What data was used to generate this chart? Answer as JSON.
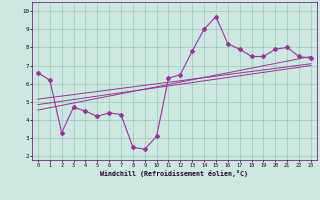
{
  "xlabel": "Windchill (Refroidissement éolien,°C)",
  "xlim": [
    -0.5,
    23.5
  ],
  "ylim": [
    1.8,
    10.5
  ],
  "yticks": [
    2,
    3,
    4,
    5,
    6,
    7,
    8,
    9,
    10
  ],
  "xticks": [
    0,
    1,
    2,
    3,
    4,
    5,
    6,
    7,
    8,
    9,
    10,
    11,
    12,
    13,
    14,
    15,
    16,
    17,
    18,
    19,
    20,
    21,
    22,
    23
  ],
  "bg_color": "#cce8e0",
  "line_color": "#993399",
  "grid_color": "#99ccbb",
  "main_x": [
    0,
    1,
    2,
    3,
    4,
    5,
    6,
    7,
    8,
    9,
    10,
    11,
    12,
    13,
    14,
    15,
    16,
    17,
    18,
    19,
    20,
    21,
    22,
    23
  ],
  "main_y": [
    6.6,
    6.2,
    3.3,
    4.7,
    4.5,
    4.2,
    4.4,
    4.3,
    2.5,
    2.4,
    3.1,
    6.3,
    6.5,
    7.8,
    9.0,
    9.7,
    8.2,
    7.9,
    7.5,
    7.5,
    7.9,
    8.0,
    7.5,
    7.4
  ],
  "fit1_x": [
    0,
    23
  ],
  "fit1_y": [
    5.15,
    7.1
  ],
  "fit2_x": [
    0,
    23
  ],
  "fit2_y": [
    4.85,
    7.0
  ],
  "fit3_x": [
    0,
    23
  ],
  "fit3_y": [
    4.55,
    7.5
  ]
}
